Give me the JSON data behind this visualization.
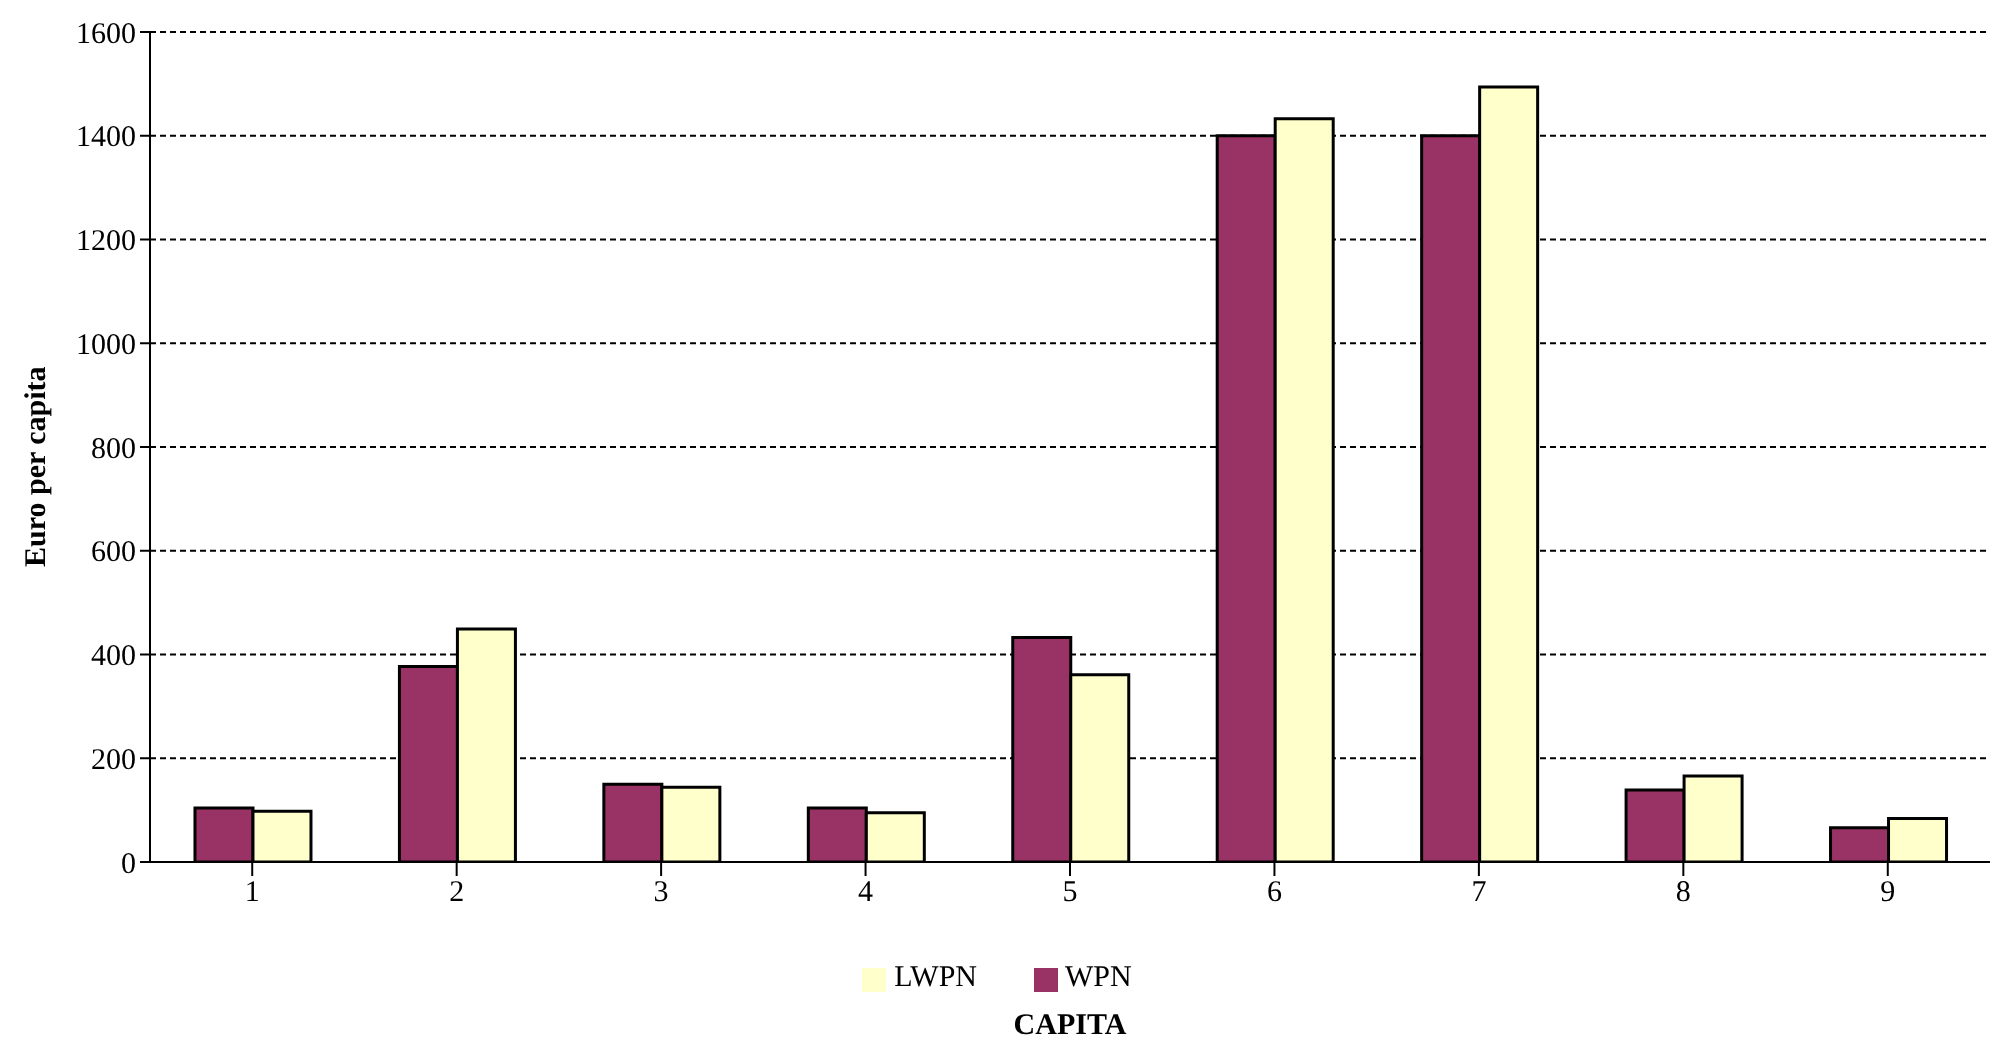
{
  "chart_data": {
    "type": "bar",
    "xlabel": "CAPITA",
    "ylabel": "Euro per capita",
    "categories": [
      "1",
      "2",
      "3",
      "4",
      "5",
      "6",
      "7",
      "8",
      "9"
    ],
    "series": [
      {
        "name": "WPN",
        "color": "#993366",
        "values": [
          104,
          377,
          150,
          104,
          433,
          1400,
          1400,
          139,
          66
        ]
      },
      {
        "name": "LWPN",
        "color": "#ffffcc",
        "values": [
          98,
          449,
          144,
          95,
          361,
          1433,
          1494,
          166,
          84
        ]
      }
    ],
    "ylim": [
      0,
      1600
    ],
    "yticks": [
      0,
      200,
      400,
      600,
      800,
      1000,
      1200,
      1400,
      1600
    ],
    "grid": "y",
    "legend": "bottom"
  }
}
